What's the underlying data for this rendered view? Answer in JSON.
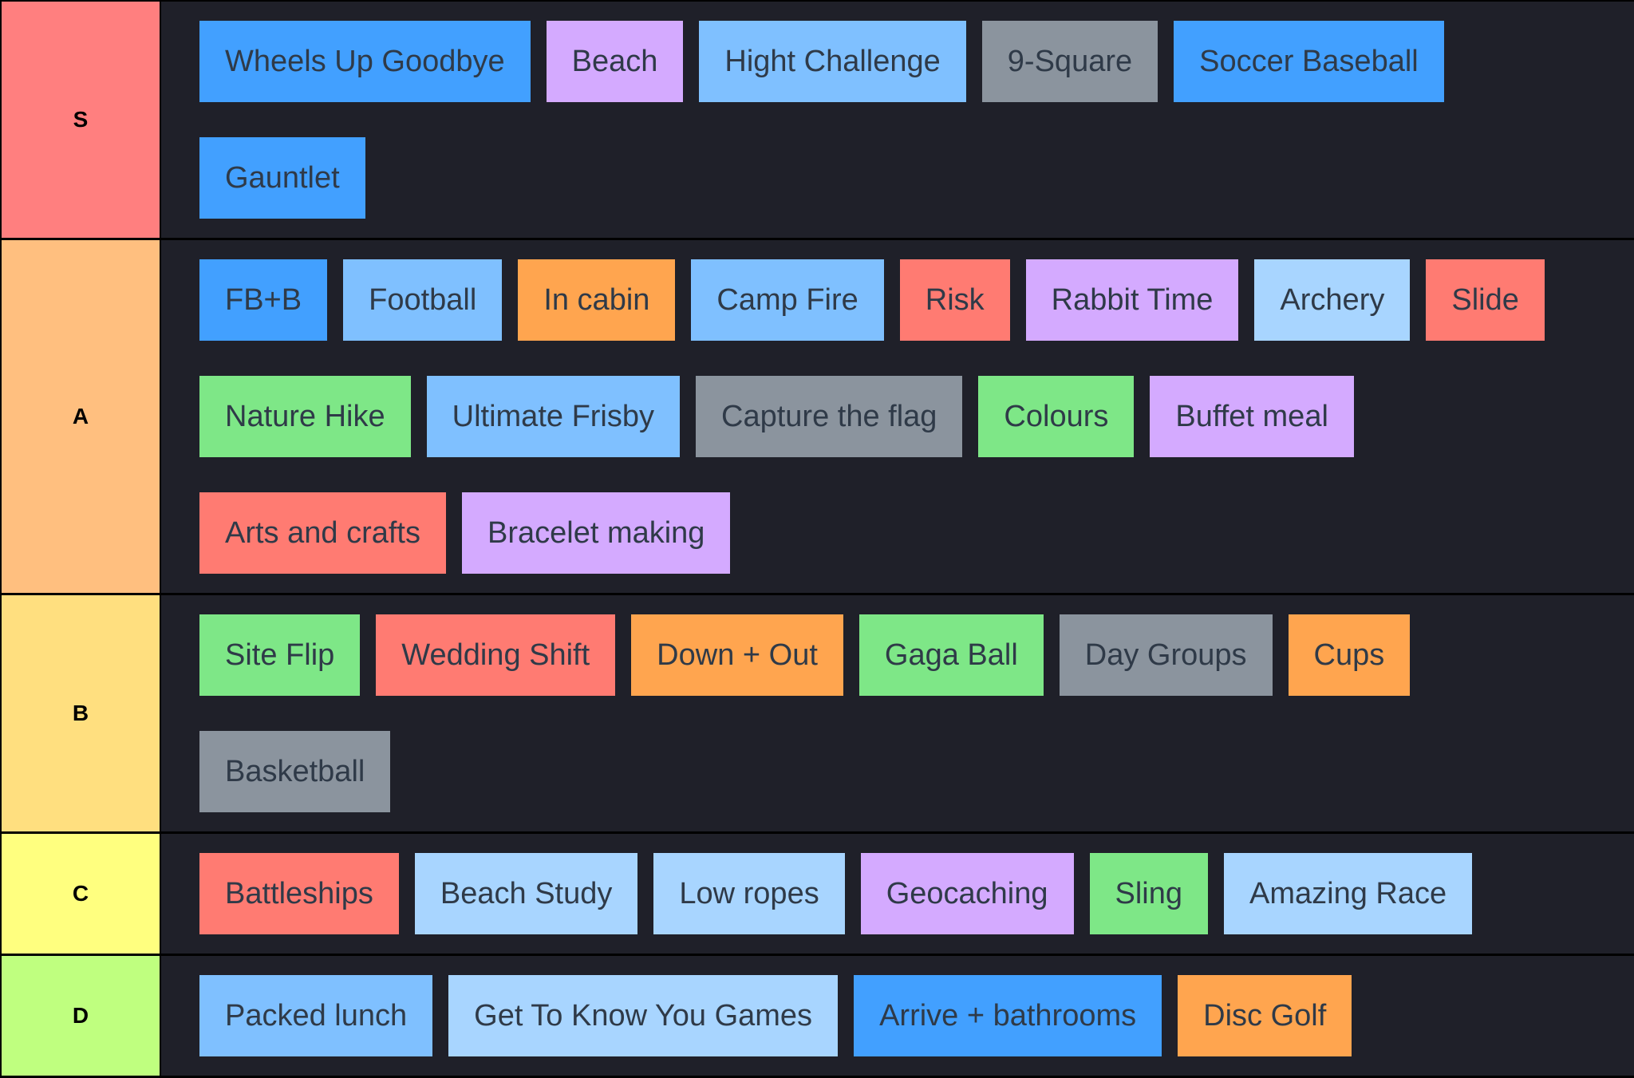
{
  "tiers": [
    {
      "label": "S",
      "color": "#ff7f7f",
      "items": [
        {
          "text": "Wheels Up Goodbye",
          "color": "#42a0ff"
        },
        {
          "text": "Beach",
          "color": "#d4aaff"
        },
        {
          "text": "Hight Challenge",
          "color": "#7fc0ff"
        },
        {
          "text": "9-Square",
          "color": "#8b949e"
        },
        {
          "text": "Soccer Baseball",
          "color": "#42a0ff"
        },
        {
          "text": "Gauntlet",
          "color": "#42a0ff"
        }
      ]
    },
    {
      "label": "A",
      "color": "#ffbf7f",
      "items": [
        {
          "text": "FB+B",
          "color": "#42a0ff"
        },
        {
          "text": "Football",
          "color": "#7fc0ff"
        },
        {
          "text": "In cabin",
          "color": "#ffa54f"
        },
        {
          "text": "Camp Fire",
          "color": "#7fc0ff"
        },
        {
          "text": "Risk",
          "color": "#ff7b72"
        },
        {
          "text": "Rabbit Time",
          "color": "#d4aaff"
        },
        {
          "text": "Archery",
          "color": "#a8d5ff"
        },
        {
          "text": "Slide",
          "color": "#ff7b72"
        },
        {
          "text": "Nature Hike",
          "color": "#7ee787"
        },
        {
          "text": "Ultimate Frisby",
          "color": "#7fc0ff"
        },
        {
          "text": "Capture the flag",
          "color": "#8b949e"
        },
        {
          "text": "Colours",
          "color": "#7ee787"
        },
        {
          "text": "Buffet meal",
          "color": "#d4aaff"
        },
        {
          "text": "Arts and crafts",
          "color": "#ff7b72"
        },
        {
          "text": "Bracelet making",
          "color": "#d4aaff"
        }
      ]
    },
    {
      "label": "B",
      "color": "#ffdf7f",
      "items": [
        {
          "text": "Site Flip",
          "color": "#7ee787"
        },
        {
          "text": "Wedding Shift",
          "color": "#ff7b72"
        },
        {
          "text": "Down + Out",
          "color": "#ffa54f"
        },
        {
          "text": "Gaga Ball",
          "color": "#7ee787"
        },
        {
          "text": "Day Groups",
          "color": "#8b949e"
        },
        {
          "text": "Cups",
          "color": "#ffa54f"
        },
        {
          "text": "Basketball",
          "color": "#8b949e"
        }
      ]
    },
    {
      "label": "C",
      "color": "#ffff7f",
      "items": [
        {
          "text": "Battleships",
          "color": "#ff7b72"
        },
        {
          "text": "Beach Study",
          "color": "#a8d5ff"
        },
        {
          "text": "Low ropes",
          "color": "#a8d5ff"
        },
        {
          "text": "Geocaching",
          "color": "#d4aaff"
        },
        {
          "text": "Sling",
          "color": "#7ee787"
        },
        {
          "text": "Amazing Race",
          "color": "#a8d5ff"
        }
      ]
    },
    {
      "label": "D",
      "color": "#bfff7f",
      "items": [
        {
          "text": "Packed lunch",
          "color": "#7fc0ff"
        },
        {
          "text": "Get To Know You Games",
          "color": "#a8d5ff"
        },
        {
          "text": "Arrive + bathrooms",
          "color": "#42a0ff"
        },
        {
          "text": "Disc Golf",
          "color": "#ffa54f"
        }
      ]
    }
  ]
}
